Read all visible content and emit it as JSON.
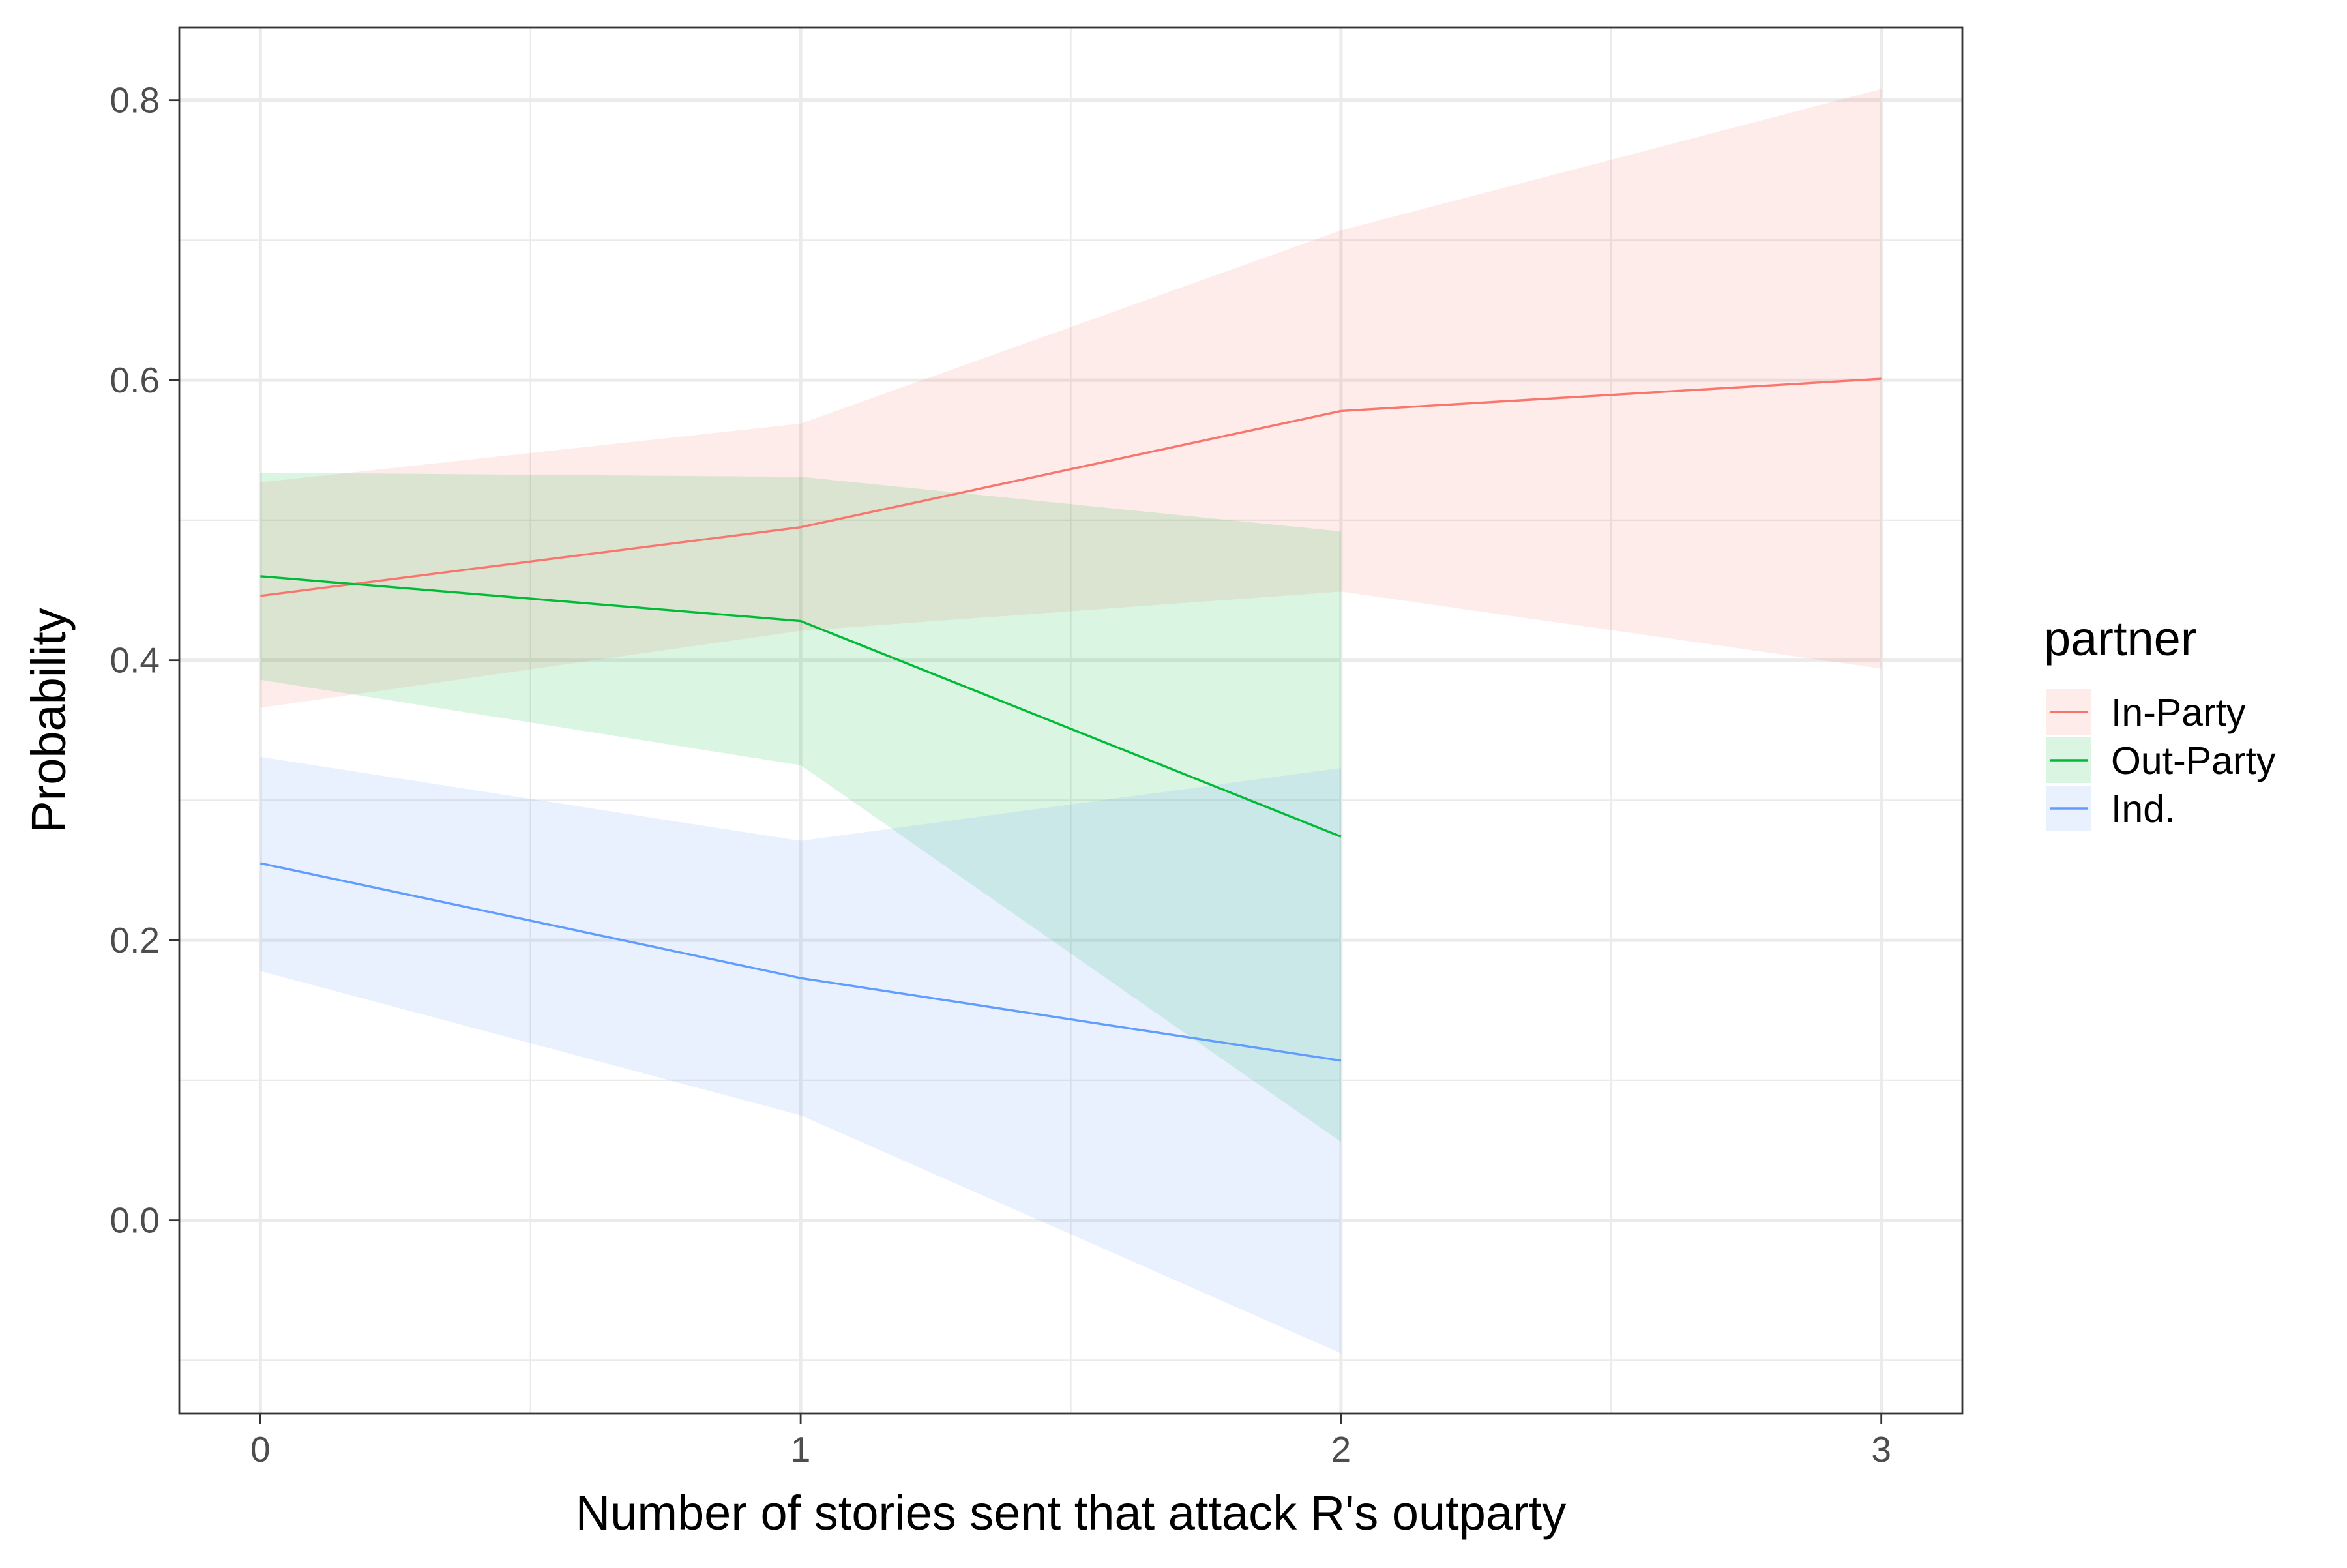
{
  "chart_data": {
    "type": "line",
    "title": "",
    "xlabel": "Number of stories sent that attack R's outparty",
    "ylabel": "Probability",
    "xlim": [
      -0.15,
      3.15
    ],
    "ylim": [
      -0.138,
      0.852
    ],
    "x_ticks": [
      0,
      1,
      2,
      3
    ],
    "x_tick_labels": [
      "0",
      "1",
      "2",
      "3"
    ],
    "y_ticks": [
      0.0,
      0.2,
      0.4,
      0.6,
      0.8
    ],
    "y_tick_labels": [
      "0.0",
      "0.2",
      "0.4",
      "0.6",
      "0.8"
    ],
    "x_minor_ticks": [
      0.5,
      1.5,
      2.5
    ],
    "y_minor_ticks": [
      -0.1,
      0.1,
      0.3,
      0.5,
      0.7
    ],
    "grid": true,
    "legend": {
      "title": "partner",
      "position": "right"
    },
    "series": [
      {
        "name": "In-Party",
        "color": "#F8766D",
        "ribbon_color": "#FDE3E1",
        "x": [
          0,
          1,
          2,
          3
        ],
        "y": [
          0.446,
          0.495,
          0.578,
          0.601
        ],
        "lower": [
          0.366,
          0.421,
          0.449,
          0.394
        ],
        "upper": [
          0.527,
          0.569,
          0.707,
          0.808
        ]
      },
      {
        "name": "Out-Party",
        "color": "#00BA38",
        "ribbon_color": "#D4F1DC",
        "x": [
          0,
          1,
          2
        ],
        "y": [
          0.46,
          0.428,
          0.274
        ],
        "lower": [
          0.386,
          0.325,
          0.056
        ],
        "upper": [
          0.534,
          0.531,
          0.492
        ]
      },
      {
        "name": "Ind.",
        "color": "#619CFF",
        "ribbon_color": "#E0EBFF",
        "x": [
          0,
          1,
          2
        ],
        "y": [
          0.255,
          0.173,
          0.114
        ],
        "lower": [
          0.178,
          0.075,
          -0.095
        ],
        "upper": [
          0.331,
          0.271,
          0.323
        ]
      }
    ]
  }
}
